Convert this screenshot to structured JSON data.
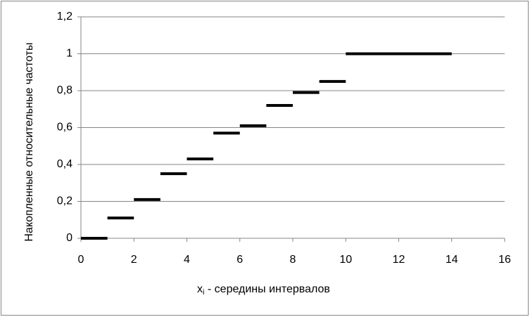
{
  "chart_data": {
    "type": "step",
    "x": [
      0,
      1,
      2,
      3,
      4,
      5,
      6,
      7,
      8,
      9,
      10
    ],
    "x_end": [
      1,
      2,
      3,
      4,
      5,
      6,
      7,
      8,
      9,
      10,
      14
    ],
    "values": [
      0,
      0.11,
      0.21,
      0.35,
      0.43,
      0.57,
      0.61,
      0.72,
      0.79,
      0.85,
      1
    ],
    "color": "#000000",
    "xlim": [
      0,
      16
    ],
    "xticks": [
      0,
      2,
      4,
      6,
      8,
      10,
      12,
      14,
      16
    ],
    "ylim": [
      0,
      1.2
    ],
    "yticks": [
      0,
      {
        "value": 0.2,
        "label": "0,2"
      },
      {
        "value": 0.4,
        "label": "0,4"
      },
      {
        "value": 0.6,
        "label": "0,6"
      },
      {
        "value": 0.8,
        "label": "0,8"
      },
      1,
      {
        "value": 1.2,
        "label": "1,2"
      }
    ],
    "grid": true,
    "xlabel": {
      "main": "x",
      "sub": "i",
      "rest": " - середины интервалов"
    },
    "ylabel": "Накопленные относительные частоты"
  }
}
